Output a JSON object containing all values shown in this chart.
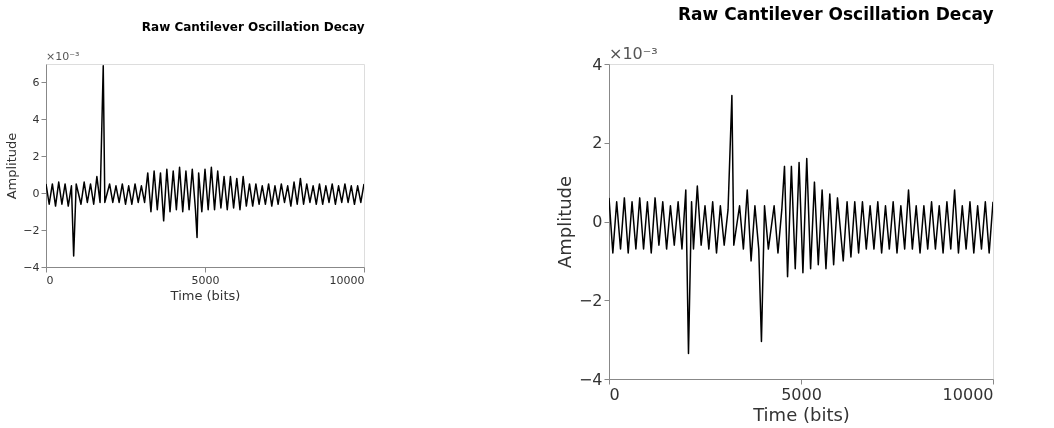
{
  "chart_data": [
    {
      "type": "line",
      "title": "Raw Cantilever Oscillation Decay",
      "xlabel": "Time (bits)",
      "ylabel": "Amplitude",
      "annotations": [
        "×10⁻³"
      ],
      "xlim": [
        0,
        10000
      ],
      "xticks": [
        0,
        5000,
        10000
      ],
      "ylim": [
        -4,
        7
      ],
      "yticks": [
        -4,
        -2,
        0,
        2,
        4,
        6
      ],
      "grid": false,
      "series": [
        {
          "color": "#000000",
          "x": [
            0,
            100,
            200,
            300,
            400,
            500,
            600,
            700,
            800,
            870,
            950,
            1100,
            1200,
            1300,
            1400,
            1500,
            1600,
            1700,
            1800,
            1850,
            2000,
            2100,
            2200,
            2300,
            2400,
            2500,
            2600,
            2700,
            2800,
            2900,
            3000,
            3100,
            3200,
            3300,
            3400,
            3500,
            3600,
            3700,
            3800,
            3900,
            4000,
            4100,
            4200,
            4300,
            4400,
            4500,
            4600,
            4700,
            4750,
            4800,
            4900,
            5000,
            5100,
            5200,
            5300,
            5400,
            5500,
            5600,
            5700,
            5800,
            5900,
            6000,
            6100,
            6200,
            6300,
            6400,
            6500,
            6600,
            6700,
            6800,
            6900,
            7000,
            7100,
            7200,
            7300,
            7400,
            7500,
            7600,
            7700,
            7800,
            7900,
            8000,
            8100,
            8200,
            8300,
            8400,
            8500,
            8600,
            8700,
            8800,
            8900,
            9000,
            9100,
            9200,
            9300,
            9400,
            9500,
            9600,
            9700,
            9800,
            9900,
            10000
          ],
          "values": [
            0.5,
            -0.6,
            0.5,
            -0.7,
            0.6,
            -0.6,
            0.5,
            -0.7,
            0.4,
            -3.4,
            0.5,
            -0.6,
            0.6,
            -0.5,
            0.5,
            -0.6,
            0.9,
            -0.5,
            6.9,
            -0.5,
            0.5,
            -0.5,
            0.4,
            -0.5,
            0.5,
            -0.6,
            0.4,
            -0.6,
            0.5,
            -0.5,
            0.4,
            -0.5,
            1.1,
            -1.0,
            1.2,
            -0.9,
            1.1,
            -1.5,
            1.3,
            -1.0,
            1.2,
            -0.9,
            1.4,
            -1.0,
            1.2,
            -0.9,
            1.3,
            -0.9,
            -2.4,
            1.1,
            -1.0,
            1.3,
            -0.9,
            1.4,
            -0.9,
            1.2,
            -0.8,
            0.9,
            -0.9,
            0.9,
            -0.8,
            0.8,
            -0.9,
            0.9,
            -0.7,
            0.5,
            -0.7,
            0.5,
            -0.6,
            0.4,
            -0.6,
            0.5,
            -0.7,
            0.4,
            -0.6,
            0.5,
            -0.5,
            0.4,
            -0.7,
            0.6,
            -0.6,
            0.8,
            -0.6,
            0.5,
            -0.5,
            0.4,
            -0.6,
            0.5,
            -0.6,
            0.4,
            -0.5,
            0.5,
            -0.6,
            0.4,
            -0.5,
            0.5,
            -0.5,
            0.4,
            -0.6,
            0.4,
            -0.5,
            0.5
          ]
        }
      ]
    },
    {
      "type": "line",
      "title": "Raw Cantilever Oscillation Decay",
      "xlabel": "Time (bits)",
      "ylabel": "Amplitude",
      "annotations": [
        "×10⁻³"
      ],
      "xlim": [
        0,
        10000
      ],
      "xticks": [
        0,
        5000,
        10000
      ],
      "ylim": [
        -4,
        4
      ],
      "yticks": [
        -4,
        -2,
        0,
        2,
        4
      ],
      "grid": false,
      "series": [
        {
          "color": "#000000",
          "x": [
            0,
            100,
            200,
            300,
            400,
            500,
            600,
            700,
            800,
            900,
            1000,
            1100,
            1200,
            1300,
            1400,
            1500,
            1600,
            1700,
            1800,
            1900,
            2000,
            2070,
            2150,
            2200,
            2300,
            2400,
            2500,
            2600,
            2700,
            2800,
            2900,
            3000,
            3100,
            3200,
            3250,
            3400,
            3500,
            3600,
            3700,
            3800,
            3900,
            3970,
            4050,
            4150,
            4300,
            4400,
            4500,
            4570,
            4650,
            4750,
            4850,
            4950,
            5050,
            5150,
            5250,
            5350,
            5450,
            5550,
            5650,
            5750,
            5850,
            5950,
            6100,
            6200,
            6300,
            6400,
            6500,
            6600,
            6700,
            6800,
            6900,
            7000,
            7100,
            7200,
            7300,
            7400,
            7500,
            7600,
            7700,
            7800,
            7900,
            8000,
            8100,
            8200,
            8300,
            8400,
            8500,
            8600,
            8700,
            8800,
            8900,
            9000,
            9100,
            9200,
            9300,
            9400,
            9500,
            9600,
            9700,
            9800,
            9900,
            10000
          ],
          "values": [
            0.6,
            -0.8,
            0.5,
            -0.7,
            0.6,
            -0.8,
            0.5,
            -0.7,
            0.6,
            -0.7,
            0.5,
            -0.8,
            0.6,
            -0.6,
            0.5,
            -0.7,
            0.4,
            -0.6,
            0.5,
            -0.7,
            0.8,
            -3.35,
            0.5,
            -0.7,
            0.9,
            -0.6,
            0.4,
            -0.7,
            0.5,
            -0.8,
            0.4,
            -0.6,
            0.3,
            3.2,
            -0.6,
            0.4,
            -0.7,
            0.8,
            -1.0,
            0.4,
            -0.7,
            -3.05,
            0.4,
            -0.7,
            0.4,
            -0.8,
            0.3,
            1.4,
            -1.4,
            1.4,
            -1.2,
            1.5,
            -1.3,
            1.6,
            -1.2,
            1.0,
            -1.1,
            0.8,
            -1.2,
            0.7,
            -1.1,
            0.6,
            -1.0,
            0.5,
            -0.9,
            0.5,
            -0.8,
            0.5,
            -0.7,
            0.4,
            -0.7,
            0.5,
            -0.8,
            0.4,
            -0.7,
            0.5,
            -0.8,
            0.4,
            -0.7,
            0.8,
            -0.7,
            0.4,
            -0.8,
            0.4,
            -0.7,
            0.5,
            -0.7,
            0.4,
            -0.8,
            0.5,
            -0.7,
            0.8,
            -0.8,
            0.4,
            -0.7,
            0.5,
            -0.8,
            0.4,
            -0.7,
            0.5,
            -0.8,
            0.5
          ]
        }
      ]
    }
  ]
}
